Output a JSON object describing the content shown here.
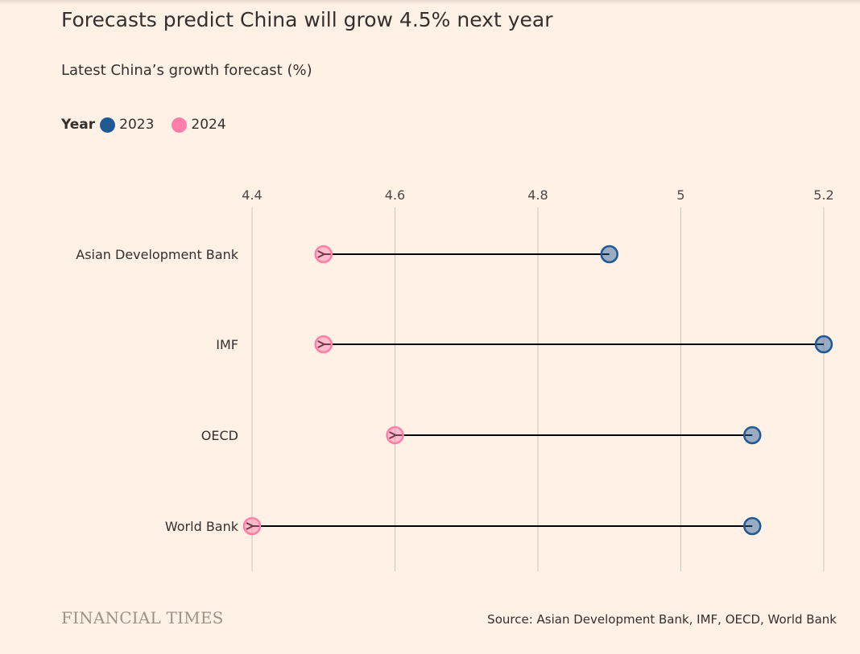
{
  "title": "Forecasts predict China will grow 4.5% next year",
  "subtitle": "Latest China’s growth forecast (%)",
  "legend": {
    "title": "Year",
    "items": [
      {
        "label": "2023",
        "color": "#1f5994"
      },
      {
        "label": "2024",
        "color": "#ff7faa"
      }
    ]
  },
  "footer": {
    "brand": "FINANCIAL TIMES",
    "source": "Source: Asian Development Bank, IMF, OECD, World Bank"
  },
  "chart_data": {
    "type": "dot-arrow",
    "categories": [
      "Asian Development Bank",
      "IMF",
      "OECD",
      "World Bank"
    ],
    "series": [
      {
        "name": "2023",
        "values": [
          4.9,
          5.2,
          5.1,
          5.1
        ],
        "color": "#1f5994"
      },
      {
        "name": "2024",
        "values": [
          4.5,
          4.5,
          4.6,
          4.4
        ],
        "color": "#ff7faa"
      }
    ],
    "xlim": [
      4.4,
      5.2
    ],
    "xticks": [
      "4.4",
      "4.6",
      "4.8",
      "5",
      "5.2"
    ],
    "grid": true
  }
}
